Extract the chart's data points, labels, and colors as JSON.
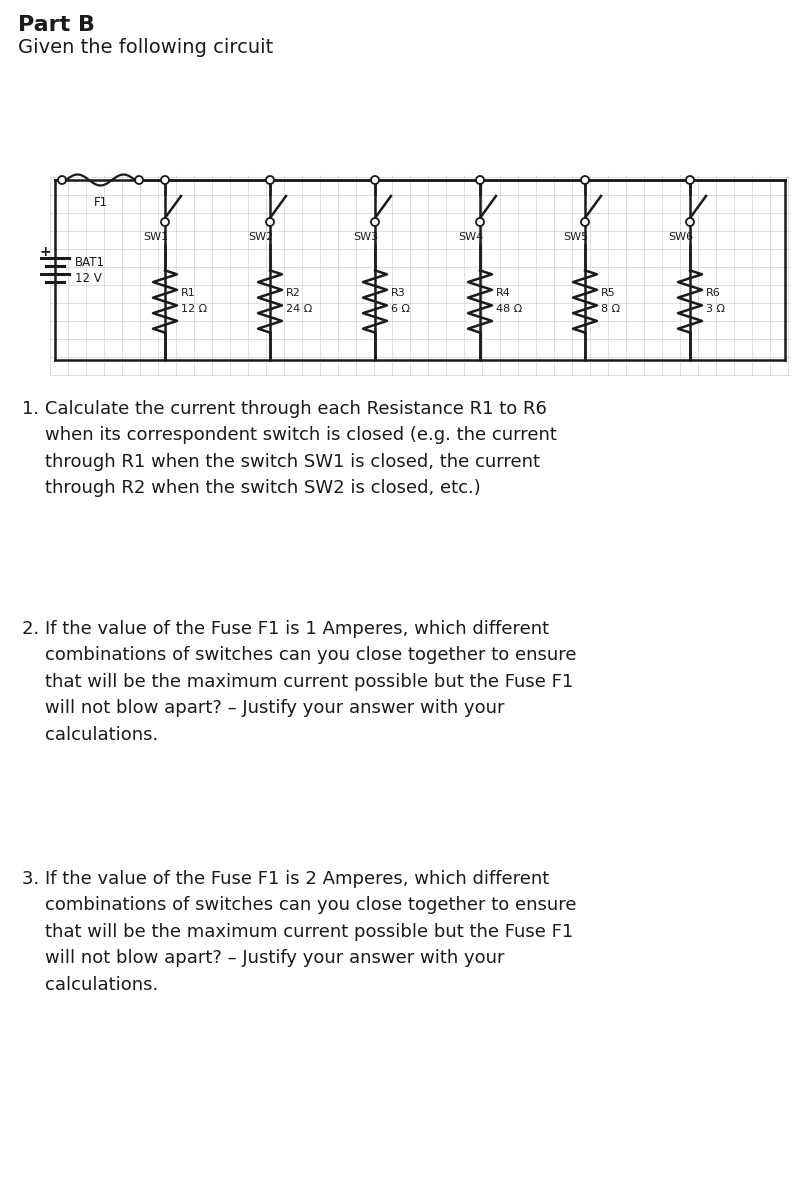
{
  "title": "Part B",
  "subtitle": "Given the following circuit",
  "background_color": "#ffffff",
  "grid_color": "#c8d4dc",
  "circuit_line_color": "#1a1a1a",
  "resistors": [
    {
      "name": "R1",
      "value": "12 Ω"
    },
    {
      "name": "R2",
      "value": "24 Ω"
    },
    {
      "name": "R3",
      "value": "6 Ω"
    },
    {
      "name": "R4",
      "value": "48 Ω"
    },
    {
      "name": "R5",
      "value": "8 Ω"
    },
    {
      "name": "R6",
      "value": "3 Ω"
    }
  ],
  "switches": [
    "SW1",
    "SW2",
    "SW3",
    "SW4",
    "SW5",
    "SW6"
  ],
  "battery_name": "BAT1",
  "battery_voltage": "12 V",
  "fuse_label": "F1",
  "q1": "1. Calculate the current through each Resistance R1 to R6\n    when its correspondent switch is closed (e.g. the current\n    through R1 when the switch SW1 is closed, the current\n    through R2 when the switch SW2 is closed, etc.)",
  "q2": "2. If the value of the Fuse F1 is 1 Amperes, which different\n    combinations of switches can you close together to ensure\n    that will be the maximum current possible but the Fuse F1\n    will not blow apart? – Justify your answer with your\n    calculations.",
  "q3": "3. If the value of the Fuse F1 is 2 Amperes, which different\n    combinations of switches can you close together to ensure\n    that will be the maximum current possible but the Fuse F1\n    will not blow apart? – Justify your answer with your\n    calculations.",
  "text_color": "#1a1a1a",
  "title_fontsize": 16,
  "subtitle_fontsize": 14,
  "question_fontsize": 13
}
